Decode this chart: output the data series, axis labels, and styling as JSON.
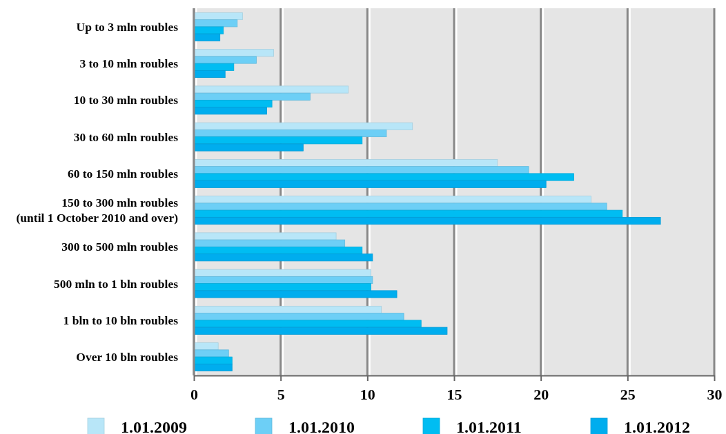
{
  "chart_data": {
    "type": "bar",
    "orientation": "horizontal",
    "categories": [
      "Up to 3 mln roubles",
      "3 to 10 mln roubles",
      "10 to 30 mln roubles",
      "30 to 60 mln roubles",
      "60 to 150 mln roubles",
      "150 to 300 mln roubles\n(until 1 October 2010 and over)",
      "300 to 500 mln roubles",
      "500 mln to 1 bln roubles",
      "1 bln to 10 bln roubles",
      "Over 10 bln roubles"
    ],
    "series": [
      {
        "name": "1.01.2009",
        "color": "#b8e6f8",
        "values": [
          2.8,
          4.6,
          8.9,
          12.6,
          17.5,
          22.9,
          8.2,
          10.2,
          10.8,
          1.4
        ]
      },
      {
        "name": "1.01.2010",
        "color": "#6dcff6",
        "values": [
          2.5,
          3.6,
          6.7,
          11.1,
          19.3,
          23.8,
          8.7,
          10.3,
          12.1,
          2.0
        ]
      },
      {
        "name": "1.01.2011",
        "color": "#00bdf2",
        "values": [
          1.7,
          2.3,
          4.5,
          9.7,
          21.9,
          24.7,
          9.7,
          10.2,
          13.1,
          2.2
        ]
      },
      {
        "name": "1.01.2012",
        "color": "#00adee",
        "values": [
          1.5,
          1.8,
          4.2,
          6.3,
          20.3,
          26.9,
          10.3,
          11.7,
          14.6,
          2.2
        ]
      }
    ],
    "xlim": [
      0,
      30
    ],
    "xticks": [
      0,
      5,
      10,
      15,
      20,
      25,
      30
    ],
    "grid": "x",
    "legend": "bottom"
  }
}
